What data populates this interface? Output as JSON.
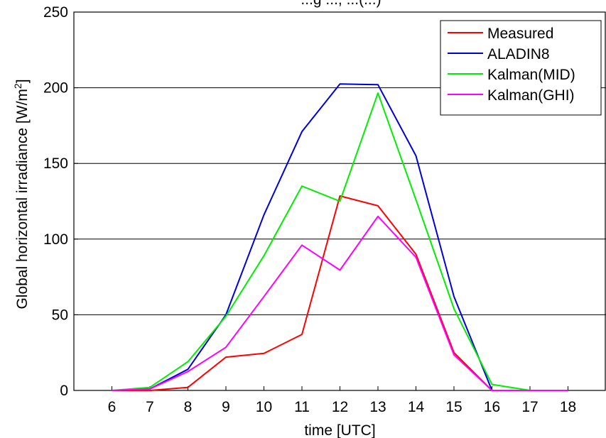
{
  "chart_data": {
    "type": "line",
    "title": "...g ..., ...(...)",
    "xlabel": "time [UTC]",
    "ylabel": "Global horizontal irradiance [W/m",
    "ylabel_sup": "2",
    "ylabel_end": "]",
    "xlim": [
      5,
      19
    ],
    "ylim": [
      0,
      250
    ],
    "xticks": [
      6,
      7,
      8,
      9,
      10,
      11,
      12,
      13,
      14,
      15,
      16,
      17,
      18
    ],
    "yticks": [
      0,
      50,
      100,
      150,
      200,
      250
    ],
    "grid": "horizontal",
    "legend_position": "top-right",
    "x": [
      6,
      7,
      8,
      9,
      10,
      11,
      12,
      13,
      14,
      15,
      16,
      17,
      18
    ],
    "series": [
      {
        "name": "Measured",
        "color": "#ff0000",
        "values": [
          0,
          0,
          2,
          22,
          24.5,
          37,
          128.5,
          122,
          90,
          25,
          0,
          0,
          0
        ]
      },
      {
        "name": "ALADIN8",
        "color": "#0000dd",
        "values": [
          0,
          1,
          14,
          50,
          116,
          171,
          202.5,
          202,
          155,
          62,
          0,
          0,
          0
        ]
      },
      {
        "name": "Kalman(MID)",
        "color": "#00ee00",
        "values": [
          0,
          2,
          19,
          49,
          89,
          135,
          125,
          196.5,
          126,
          54,
          4,
          0,
          0
        ]
      },
      {
        "name": "Kalman(GHI)",
        "color": "#ff00ff",
        "values": [
          0,
          1,
          12.5,
          28.5,
          62,
          96,
          79.5,
          115,
          88,
          23.5,
          0,
          0,
          0
        ]
      }
    ]
  }
}
